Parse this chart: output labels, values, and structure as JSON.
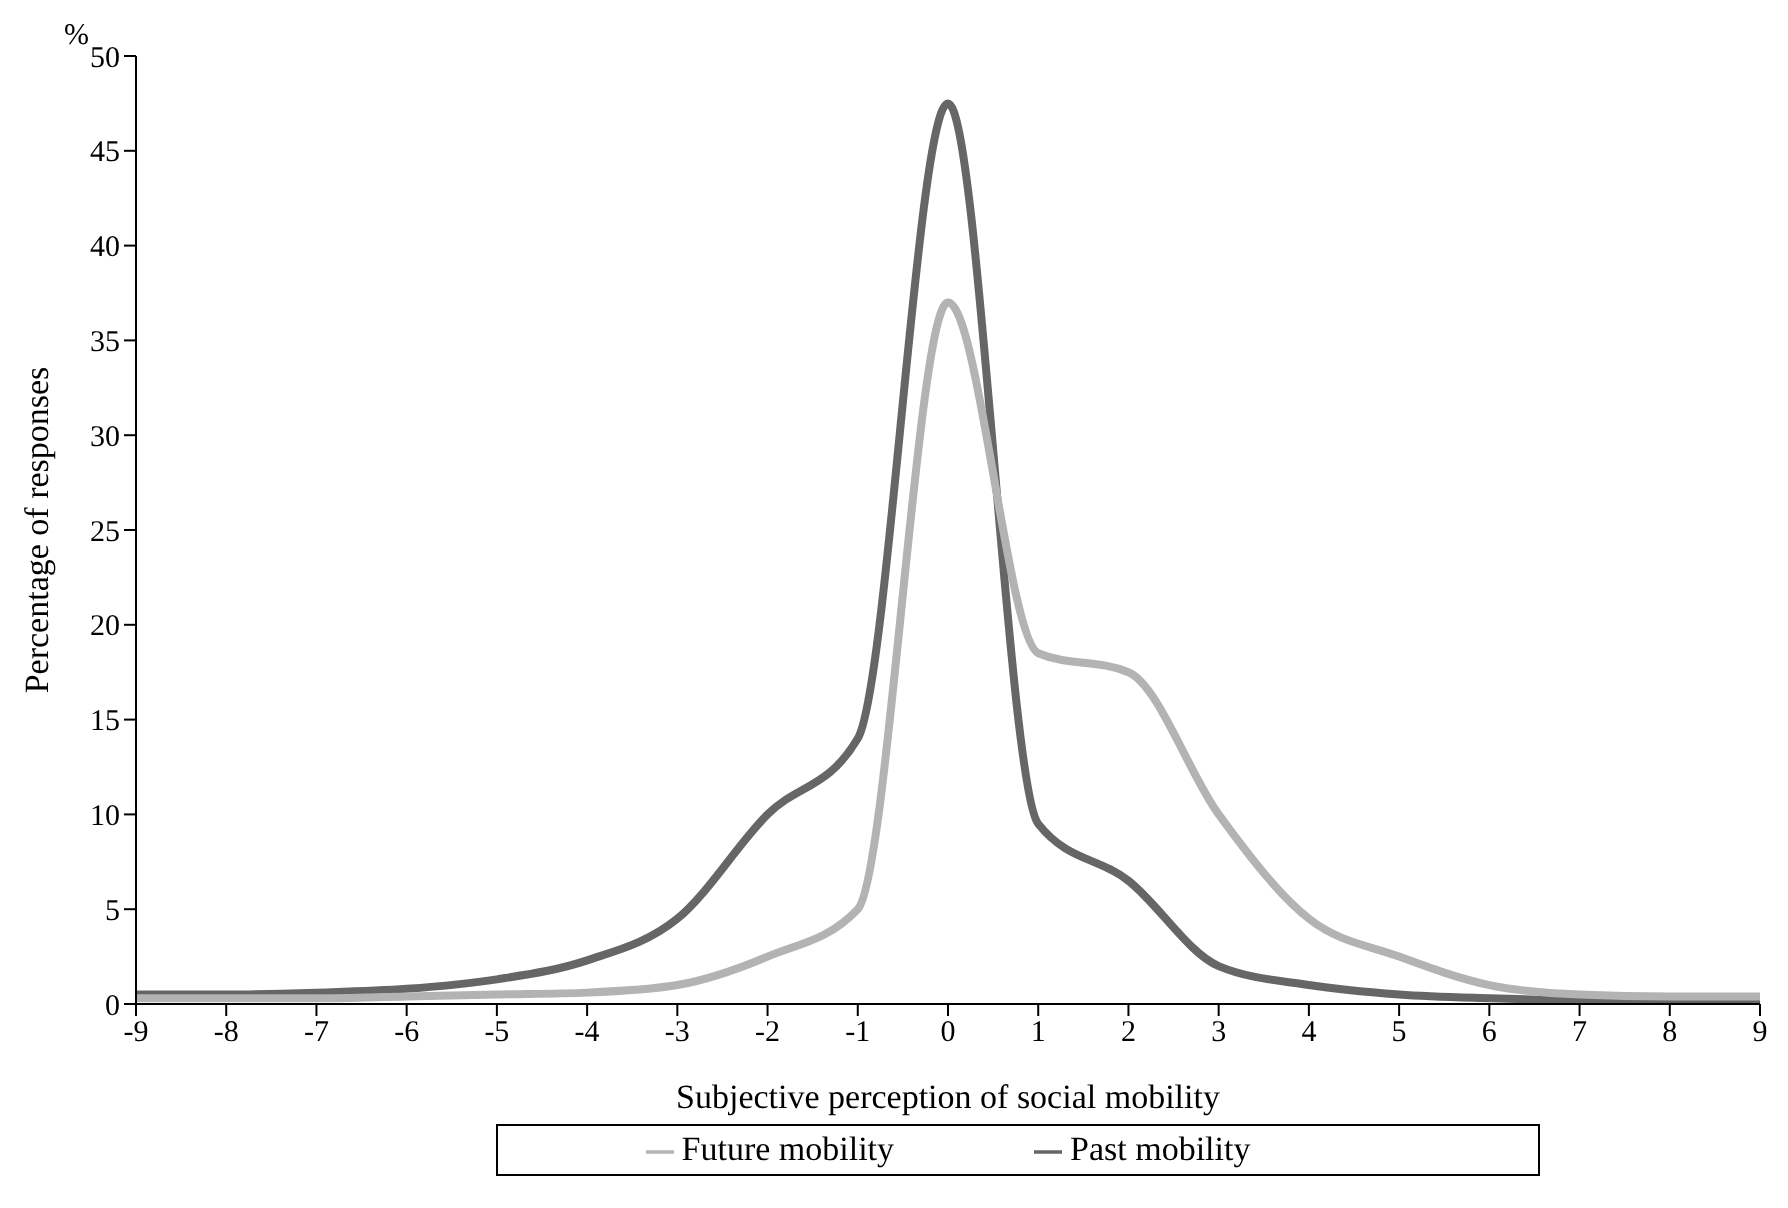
{
  "chart_data": {
    "type": "line",
    "xlabel": "Subjective perception of social mobility",
    "ylabel": "Percentage of responses",
    "annotations": [
      "%"
    ],
    "categories": [
      "-9",
      "-8",
      "-7",
      "-6",
      "-5",
      "-4",
      "-3",
      "-2",
      "-1",
      "0",
      "1",
      "2",
      "3",
      "4",
      "5",
      "6",
      "7",
      "8",
      "9"
    ],
    "series": [
      {
        "name": "Past mobility",
        "color": "#666666",
        "values": [
          0.5,
          0.5,
          0.6,
          0.8,
          1.3,
          2.3,
          4.5,
          10,
          14,
          47.5,
          9.5,
          6.5,
          2,
          1,
          0.5,
          0.3,
          0.2,
          0.2,
          0.2
        ]
      },
      {
        "name": "Future mobility",
        "color": "#b3b3b3",
        "values": [
          0.3,
          0.3,
          0.3,
          0.4,
          0.5,
          0.6,
          1,
          2.5,
          5,
          37,
          18.5,
          17.5,
          10,
          4.5,
          2.5,
          1,
          0.5,
          0.4,
          0.4
        ]
      }
    ],
    "ylim": [
      0,
      50
    ],
    "yticks": [
      0,
      5,
      10,
      15,
      20,
      25,
      30,
      35,
      40,
      45,
      50
    ],
    "grid": false,
    "legend": "bottom",
    "marker": "none",
    "line_style": "solid"
  }
}
